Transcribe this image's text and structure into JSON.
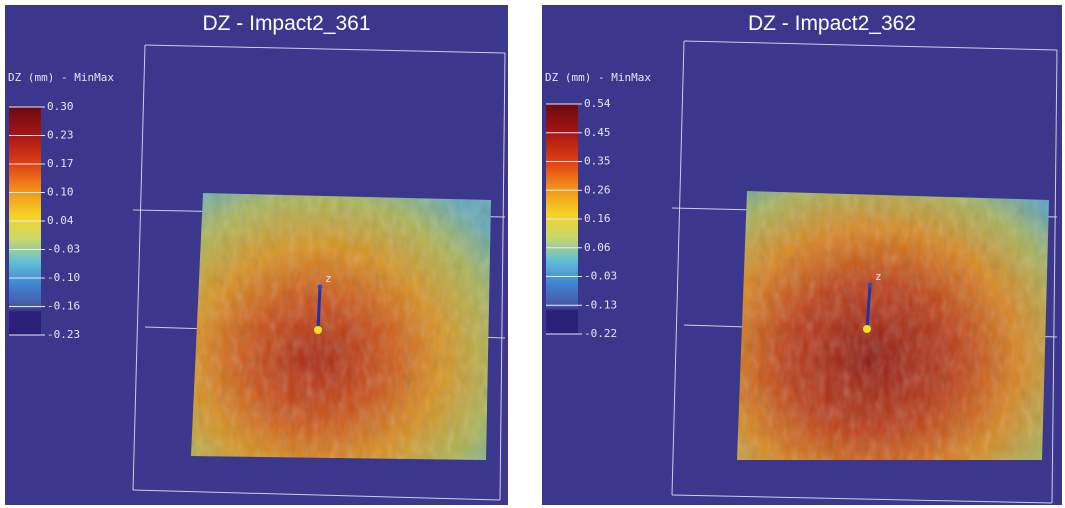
{
  "panels": [
    {
      "title": "DZ - Impact2_361",
      "legend": {
        "title": "DZ (mm) - MinMax",
        "ticks": [
          "0.30",
          "0.23",
          "0.17",
          "0.10",
          "0.04",
          "-0.03",
          "-0.10",
          "-0.16",
          "-0.23"
        ]
      },
      "axis_label": "z"
    },
    {
      "title": "DZ - Impact2_362",
      "legend": {
        "title": "DZ (mm) - MinMax",
        "ticks": [
          "0.54",
          "0.45",
          "0.35",
          "0.26",
          "0.16",
          "0.06",
          "-0.03",
          "-0.13",
          "-0.22"
        ]
      },
      "axis_label": "z"
    }
  ]
}
